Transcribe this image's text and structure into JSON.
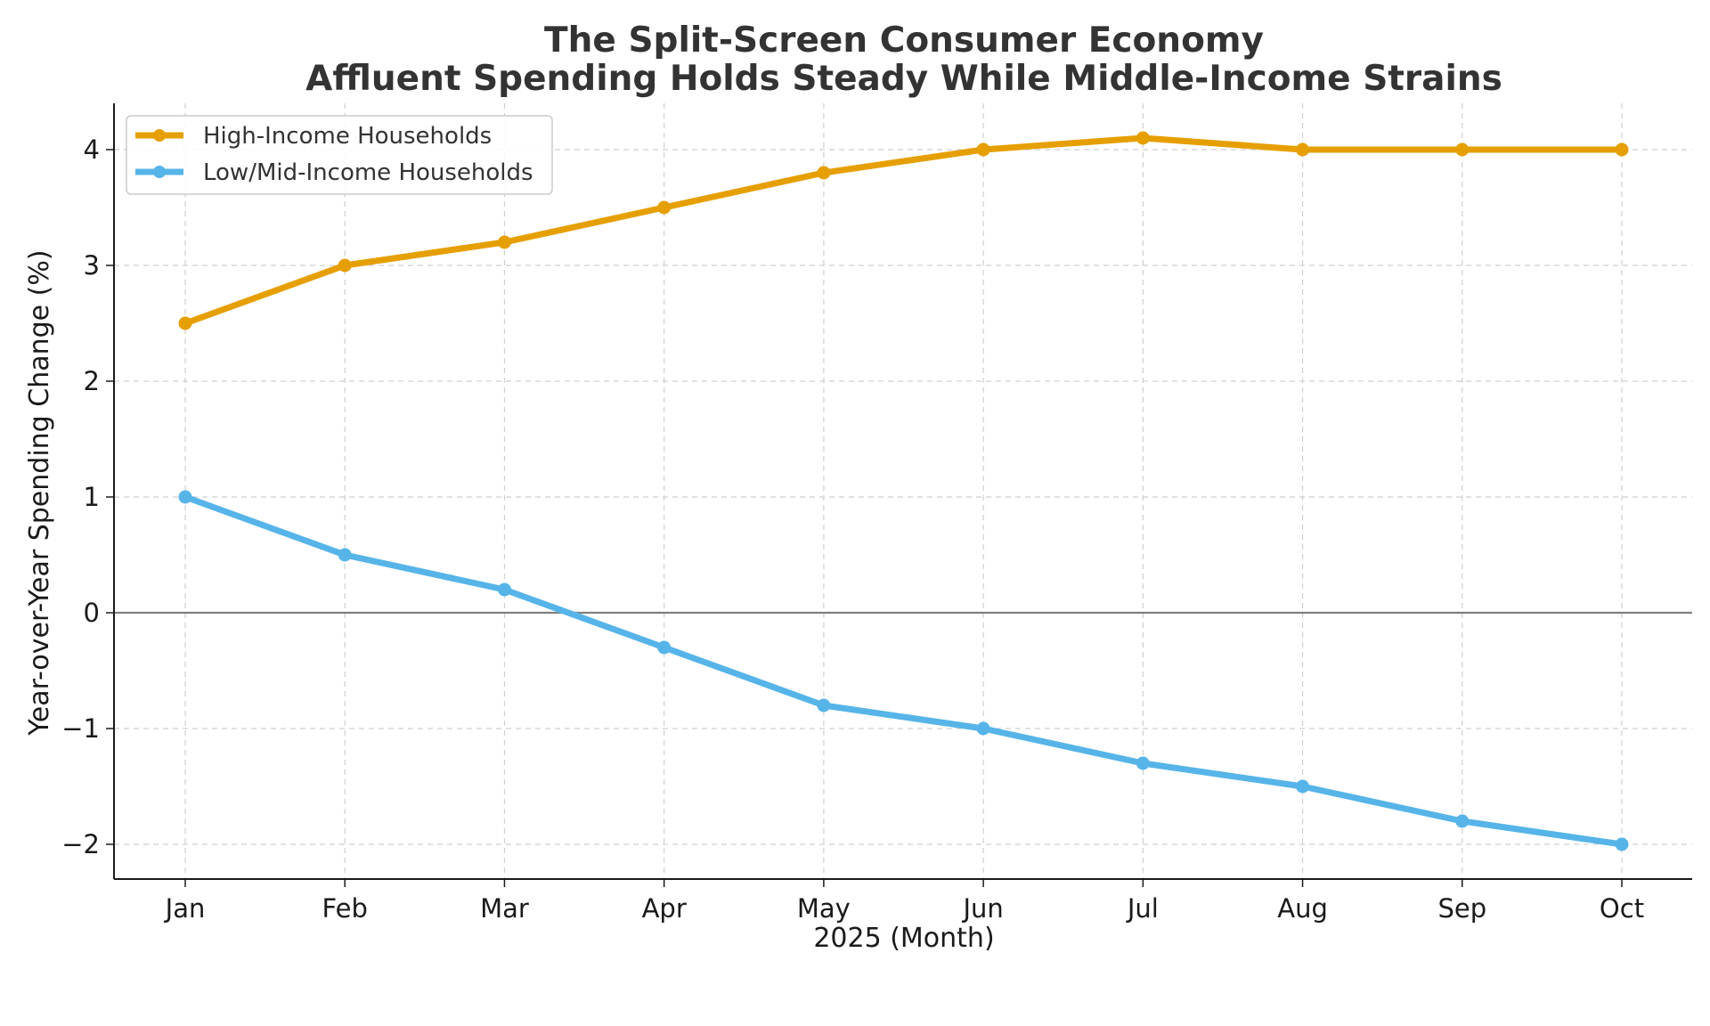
{
  "chart_data": {
    "type": "line",
    "title": "The Split-Screen Consumer Economy",
    "subtitle": "Affluent Spending Holds Steady While Middle-Income Strains",
    "xlabel": "2025 (Month)",
    "ylabel": "Year-over-Year Spending Change (%)",
    "categories": [
      "Jan",
      "Feb",
      "Mar",
      "Apr",
      "May",
      "Jun",
      "Jul",
      "Aug",
      "Sep",
      "Oct"
    ],
    "ylim": [
      -2.3,
      4.4
    ],
    "yticks": [
      -2,
      -1,
      0,
      1,
      2,
      3,
      4
    ],
    "ytick_labels": [
      "−2",
      "−1",
      "0",
      "1",
      "2",
      "3",
      "4"
    ],
    "grid": true,
    "zero_line": true,
    "legend_position": "top-left",
    "series": [
      {
        "name": "High-Income Households",
        "color": "#E69F00",
        "values": [
          2.5,
          3.0,
          3.2,
          3.5,
          3.8,
          4.0,
          4.1,
          4.0,
          4.0,
          4.0
        ]
      },
      {
        "name": "Low/Mid-Income Households",
        "color": "#56B4E9",
        "values": [
          1.0,
          0.5,
          0.2,
          -0.3,
          -0.8,
          -1.0,
          -1.3,
          -1.5,
          -1.8,
          -2.0
        ]
      }
    ]
  }
}
